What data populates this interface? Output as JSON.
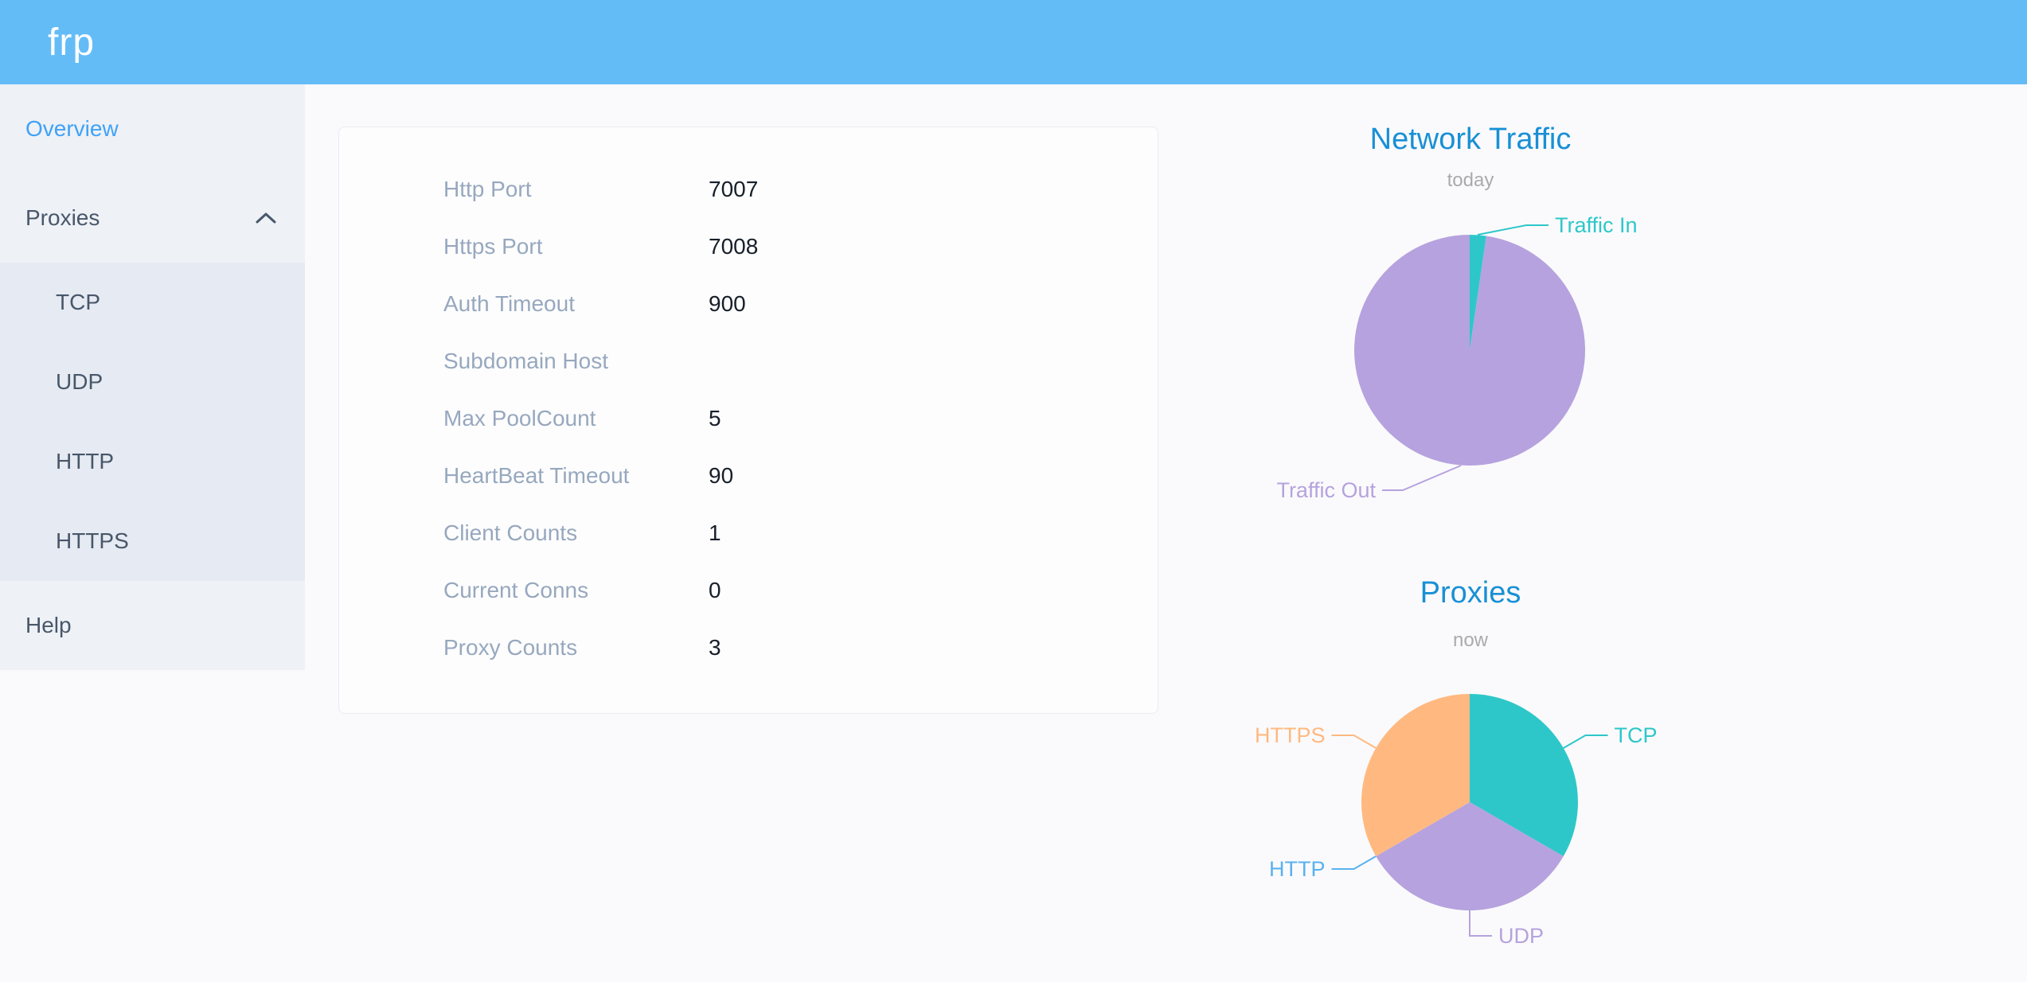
{
  "header": {
    "logo": "frp"
  },
  "sidebar": {
    "items": [
      {
        "label": "Overview",
        "active": true
      },
      {
        "label": "Proxies",
        "expanded": true,
        "children": [
          "TCP",
          "UDP",
          "HTTP",
          "HTTPS"
        ]
      },
      {
        "label": "Help"
      }
    ]
  },
  "server_info": {
    "rows": [
      {
        "label": "Http Port",
        "value": "7007"
      },
      {
        "label": "Https Port",
        "value": "7008"
      },
      {
        "label": "Auth Timeout",
        "value": "900"
      },
      {
        "label": "Subdomain Host",
        "value": ""
      },
      {
        "label": "Max PoolCount",
        "value": "5"
      },
      {
        "label": "HeartBeat Timeout",
        "value": "90"
      },
      {
        "label": "Client Counts",
        "value": "1"
      },
      {
        "label": "Current Conns",
        "value": "0"
      },
      {
        "label": "Proxy Counts",
        "value": "3"
      }
    ]
  },
  "chart_data": [
    {
      "type": "pie",
      "title": "Network Traffic",
      "subtitle": "today",
      "legend_position": "callout-labels",
      "series": [
        {
          "name": "Traffic In",
          "value": 2.3,
          "color": "#2ec7c9"
        },
        {
          "name": "Traffic Out",
          "value": 97.7,
          "color": "#b6a2de"
        }
      ],
      "note": "slice sizes estimated from pixels (~2% in / ~98% out); no numeric values shown in UI"
    },
    {
      "type": "pie",
      "title": "Proxies",
      "subtitle": "now",
      "legend_position": "callout-labels",
      "series": [
        {
          "name": "TCP",
          "value": 1,
          "color": "#2ec7c9"
        },
        {
          "name": "UDP",
          "value": 1,
          "color": "#b6a2de"
        },
        {
          "name": "HTTP",
          "value": 0,
          "color": "#5ab1ef"
        },
        {
          "name": "HTTPS",
          "value": 1,
          "color": "#ffb980"
        }
      ]
    }
  ]
}
